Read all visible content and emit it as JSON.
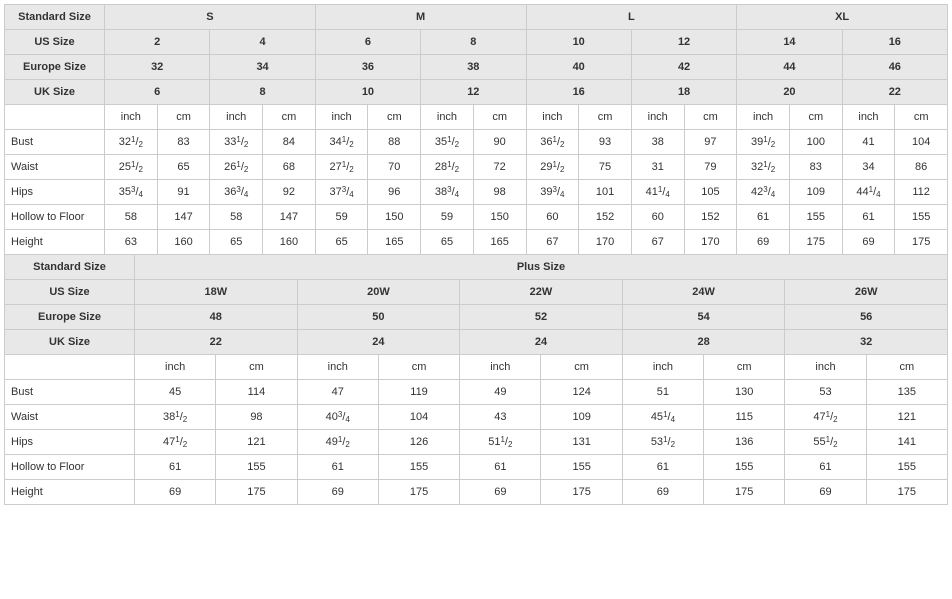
{
  "labels": {
    "standard_size": "Standard Size",
    "us_size": "US Size",
    "europe_size": "Europe Size",
    "uk_size": "UK Size",
    "plus_size": "Plus Size",
    "inch": "inch",
    "cm": "cm",
    "bust": "Bust",
    "waist": "Waist",
    "hips": "Hips",
    "hollow": "Hollow to Floor",
    "height": "Height"
  },
  "t1": {
    "std": [
      "S",
      "M",
      "L",
      "XL"
    ],
    "us": [
      "2",
      "4",
      "6",
      "8",
      "10",
      "12",
      "14",
      "16"
    ],
    "eu": [
      "32",
      "34",
      "36",
      "38",
      "40",
      "42",
      "44",
      "46"
    ],
    "uk": [
      "6",
      "8",
      "10",
      "12",
      "16",
      "18",
      "20",
      "22"
    ],
    "rows": [
      {
        "label": "bust",
        "v": [
          [
            "32 1/2",
            "83"
          ],
          [
            "33 1/2",
            "84"
          ],
          [
            "34 1/2",
            "88"
          ],
          [
            "35 1/2",
            "90"
          ],
          [
            "36 1/2",
            "93"
          ],
          [
            "38",
            "97"
          ],
          [
            "39 1/2",
            "100"
          ],
          [
            "41",
            "104"
          ]
        ]
      },
      {
        "label": "waist",
        "v": [
          [
            "25 1/2",
            "65"
          ],
          [
            "26 1/2",
            "68"
          ],
          [
            "27 1/2",
            "70"
          ],
          [
            "28 1/2",
            "72"
          ],
          [
            "29 1/2",
            "75"
          ],
          [
            "31",
            "79"
          ],
          [
            "32 1/2",
            "83"
          ],
          [
            "34",
            "86"
          ]
        ]
      },
      {
        "label": "hips",
        "v": [
          [
            "35 3/4",
            "91"
          ],
          [
            "36 3/4",
            "92"
          ],
          [
            "37 3/4",
            "96"
          ],
          [
            "38 3/4",
            "98"
          ],
          [
            "39 3/4",
            "101"
          ],
          [
            "41 1/4",
            "105"
          ],
          [
            "42 3/4",
            "109"
          ],
          [
            "44 1/4",
            "112"
          ]
        ]
      },
      {
        "label": "hollow",
        "v": [
          [
            "58",
            "147"
          ],
          [
            "58",
            "147"
          ],
          [
            "59",
            "150"
          ],
          [
            "59",
            "150"
          ],
          [
            "60",
            "152"
          ],
          [
            "60",
            "152"
          ],
          [
            "61",
            "155"
          ],
          [
            "61",
            "155"
          ]
        ]
      },
      {
        "label": "height",
        "v": [
          [
            "63",
            "160"
          ],
          [
            "65",
            "160"
          ],
          [
            "65",
            "165"
          ],
          [
            "65",
            "165"
          ],
          [
            "67",
            "170"
          ],
          [
            "67",
            "170"
          ],
          [
            "69",
            "175"
          ],
          [
            "69",
            "175"
          ]
        ]
      }
    ]
  },
  "t2": {
    "us": [
      "18W",
      "20W",
      "22W",
      "24W",
      "26W"
    ],
    "eu": [
      "48",
      "50",
      "52",
      "54",
      "56"
    ],
    "uk": [
      "22",
      "24",
      "24",
      "28",
      "32"
    ],
    "rows": [
      {
        "label": "bust",
        "v": [
          [
            "45",
            "114"
          ],
          [
            "47",
            "119"
          ],
          [
            "49",
            "124"
          ],
          [
            "51",
            "130"
          ],
          [
            "53",
            "135"
          ]
        ]
      },
      {
        "label": "waist",
        "v": [
          [
            "38 1/2",
            "98"
          ],
          [
            "40 3/4",
            "104"
          ],
          [
            "43",
            "109"
          ],
          [
            "45 1/4",
            "115"
          ],
          [
            "47 1/2",
            "121"
          ]
        ]
      },
      {
        "label": "hips",
        "v": [
          [
            "47 1/2",
            "121"
          ],
          [
            "49 1/2",
            "126"
          ],
          [
            "51 1/2",
            "131"
          ],
          [
            "53 1/2",
            "136"
          ],
          [
            "55 1/2",
            "141"
          ]
        ]
      },
      {
        "label": "hollow",
        "v": [
          [
            "61",
            "155"
          ],
          [
            "61",
            "155"
          ],
          [
            "61",
            "155"
          ],
          [
            "61",
            "155"
          ],
          [
            "61",
            "155"
          ]
        ]
      },
      {
        "label": "height",
        "v": [
          [
            "69",
            "175"
          ],
          [
            "69",
            "175"
          ],
          [
            "69",
            "175"
          ],
          [
            "69",
            "175"
          ],
          [
            "69",
            "175"
          ]
        ]
      }
    ]
  }
}
